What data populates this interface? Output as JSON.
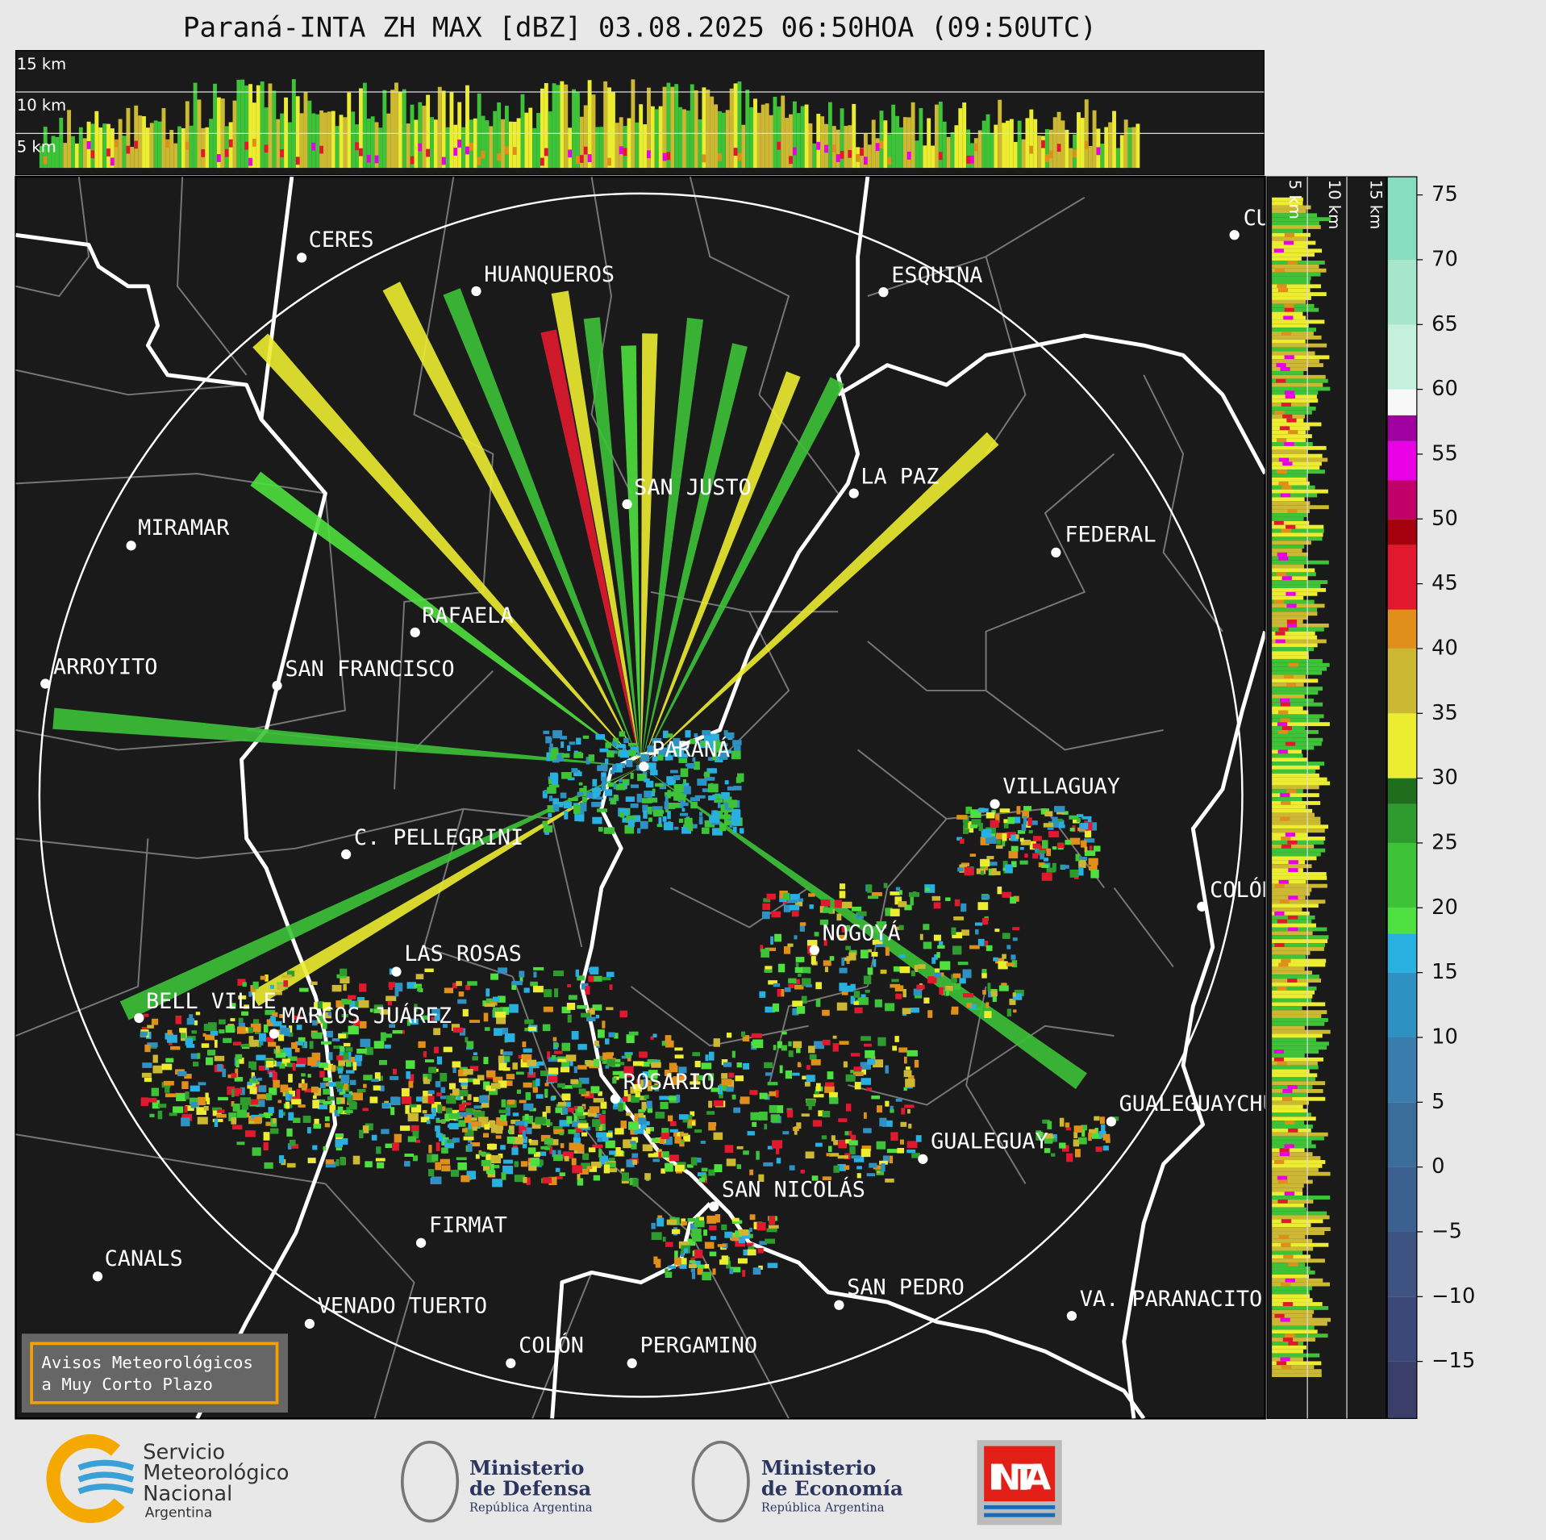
{
  "title": "Paraná-INTA ZH MAX [dBZ] 03.08.2025 06:50HOA (09:50UTC)",
  "top_panel": {
    "height_labels": [
      "15 km",
      "10 km",
      "5 km"
    ]
  },
  "side_panel": {
    "height_labels": [
      "5 km",
      "10 km",
      "15 km"
    ]
  },
  "cities": [
    "CERES",
    "HUANQUEROS",
    "ESQUINA",
    "CU",
    "SAN JUSTO",
    "LA PAZ",
    "MIRAMAR",
    "FEDERAL",
    "RAFAELA",
    "ARROYITO",
    "SAN FRANCISCO",
    "PARANÁ",
    "VILLAGUAY",
    "C. PELLEGRINI",
    "COLÓN",
    "NOGOYÁ",
    "LAS ROSAS",
    "BELL VILLE",
    "MARCOS JUÁREZ",
    "ROSARIO",
    "GUALEGUAYCHÚ",
    "GUALEGUAY",
    "SAN NICOLÁS",
    "FIRMAT",
    "CANALS",
    "SAN PEDRO",
    "VA. PARANACITO",
    "VENADO TUERTO",
    "COLÓN",
    "PERGAMINO"
  ],
  "notice": [
    "Avisos Meteorológicos",
    "a Muy Corto Plazo"
  ],
  "colorbar": {
    "lim": [
      -19.4,
      76.4
    ],
    "ticks": [
      75,
      70,
      65,
      60,
      55,
      50,
      45,
      40,
      35,
      30,
      25,
      20,
      15,
      10,
      5,
      0,
      {
        "value": -5,
        "label": "−5"
      },
      {
        "value": -10,
        "label": "−10"
      },
      {
        "value": -15,
        "label": "−15"
      }
    ],
    "levels": [
      -19.4,
      -15,
      -10,
      -5,
      0,
      5,
      10,
      15,
      18,
      20,
      25,
      28,
      30,
      35,
      40,
      43,
      48,
      50,
      53,
      56,
      58,
      60,
      65,
      70,
      76.4
    ],
    "colors": [
      "#3b3e69",
      "#3c4877",
      "#3d5483",
      "#3c608f",
      "#3b6d9b",
      "#3a7cab",
      "#2f90c2",
      "#27b0e0",
      "#4ee03e",
      "#3dc238",
      "#2e9b2e",
      "#1e6e1e",
      "#ecec30",
      "#ccb832",
      "#e0901a",
      "#e2182e",
      "#a4000e",
      "#c2006a",
      "#ea00e4",
      "#a000a0",
      "#f8f8f8",
      "#c6f0de",
      "#a6e6cc",
      "#88dcc0"
    ]
  },
  "logos": {
    "smn": [
      "Servicio",
      "Meteorológico",
      "Nacional",
      "Argentina"
    ],
    "defensa": [
      "Ministerio",
      "de Defensa",
      "República Argentina"
    ],
    "economia": [
      "Ministerio",
      "de Economía",
      "República Argentina"
    ],
    "inta": "INTA"
  }
}
